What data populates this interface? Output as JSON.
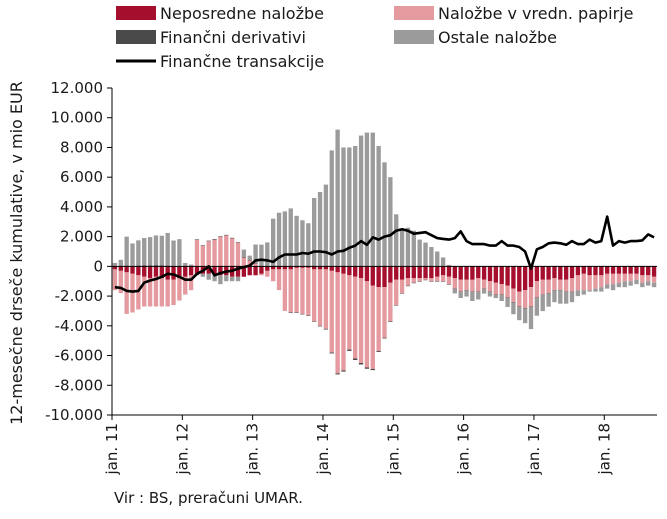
{
  "chart_data": {
    "type": "bar",
    "stacked": true,
    "ylabel": "12-mesečne drseče kumulative, v mio EUR",
    "ylim": [
      -10000,
      12000
    ],
    "yticks": [
      12000,
      10000,
      8000,
      6000,
      4000,
      2000,
      0,
      -2000,
      -4000,
      -6000,
      -8000,
      -10000
    ],
    "ytick_labels": [
      "12.000",
      "10.000",
      "8.000",
      "6.000",
      "4.000",
      "2.000",
      "0",
      "-2.000",
      "-4.000",
      "-6.000",
      "-8.000",
      "-10.000"
    ],
    "xtick_labels": [
      "jan. 11",
      "jan. 12",
      "jan. 13",
      "jan. 14",
      "jan. 15",
      "jan. 16",
      "jan. 17",
      "jan. 18"
    ],
    "xtick_indices": [
      0,
      12,
      24,
      36,
      48,
      60,
      72,
      84
    ],
    "months": 93,
    "grid": false,
    "legend": "top",
    "series": [
      {
        "name": "Neposredne naložbe",
        "color": "#a50f2d",
        "values": [
          -200,
          -300,
          -400,
          -500,
          -600,
          -700,
          -800,
          -700,
          -800,
          -900,
          -900,
          -800,
          -700,
          -600,
          -500,
          -500,
          -500,
          -500,
          -600,
          -600,
          -700,
          -700,
          -700,
          -600,
          -600,
          -500,
          -300,
          -200,
          -200,
          -200,
          -200,
          -100,
          -100,
          -100,
          -200,
          -200,
          -200,
          -300,
          -400,
          -500,
          -600,
          -700,
          -800,
          -1000,
          -1300,
          -1400,
          -1400,
          -1100,
          -900,
          -900,
          -800,
          -800,
          -800,
          -800,
          -800,
          -700,
          -600,
          -700,
          -800,
          -900,
          -900,
          -900,
          -800,
          -900,
          -1000,
          -1100,
          -1200,
          -1300,
          -1500,
          -1700,
          -1600,
          -1400,
          -1000,
          -900,
          -900,
          -800,
          -900,
          -900,
          -800,
          -600,
          -500,
          -600,
          -600,
          -600,
          -500,
          -500,
          -500,
          -500,
          -500,
          -500,
          -600,
          -600,
          -700
        ]
      },
      {
        "name": "Naložbe v vredn. papirje",
        "color": "#e49a9e",
        "values": [
          -1400,
          -1500,
          -2800,
          -2600,
          -2300,
          -2000,
          -1900,
          -2000,
          -1900,
          -1800,
          -1700,
          -1500,
          -1200,
          -1000,
          1800,
          1400,
          1700,
          1800,
          2000,
          2100,
          1900,
          1600,
          600,
          400,
          200,
          -100,
          -400,
          -800,
          -1400,
          -2800,
          -2900,
          -3000,
          -3100,
          -3200,
          -3500,
          -3800,
          -4000,
          -5500,
          -6800,
          -6500,
          -5000,
          -5500,
          -5700,
          -5800,
          -5600,
          -4300,
          -3400,
          -2600,
          -1700,
          -900,
          -500,
          -300,
          -200,
          -100,
          -200,
          -300,
          -400,
          -500,
          -700,
          -800,
          -700,
          -800,
          -900,
          -600,
          -700,
          -800,
          -700,
          -800,
          -900,
          -1000,
          -1200,
          -1300,
          -1100,
          -1000,
          -900,
          -800,
          -700,
          -800,
          -900,
          -1000,
          -1100,
          -1000,
          -900,
          -800,
          -700,
          -700,
          -600,
          -500,
          -500,
          -400,
          -500,
          -400,
          -400
        ]
      },
      {
        "name": "Finančni derivativi",
        "color": "#4a4a4a",
        "values": [
          30,
          40,
          50,
          40,
          50,
          60,
          70,
          80,
          60,
          50,
          40,
          30,
          30,
          20,
          20,
          20,
          30,
          40,
          30,
          20,
          20,
          30,
          30,
          20,
          20,
          10,
          10,
          10,
          10,
          0,
          -10,
          -10,
          -20,
          -30,
          -30,
          -40,
          -50,
          -60,
          -70,
          -80,
          -90,
          -100,
          -100,
          -90,
          -80,
          -60,
          -50,
          -40,
          -30,
          -20,
          -20,
          -10,
          -10,
          -10,
          -10,
          -20,
          -20,
          -20,
          -20,
          -30,
          -30,
          -30,
          -30,
          -30,
          -30,
          -30,
          -30,
          -30,
          -20,
          -20,
          -20,
          -20,
          -20,
          -10,
          -10,
          -10,
          -10,
          -10,
          -10,
          0,
          0,
          0,
          0,
          0,
          0,
          0,
          0,
          0,
          0,
          0,
          0,
          0,
          0
        ]
      },
      {
        "name": "Ostale naložbe",
        "color": "#9b9b9b",
        "values": [
          200,
          400,
          1950,
          1500,
          1700,
          1850,
          1900,
          2000,
          2000,
          2200,
          1700,
          1800,
          200,
          100,
          -100,
          -200,
          -400,
          -500,
          -600,
          -400,
          -300,
          -300,
          500,
          300,
          1250,
          1450,
          1600,
          3200,
          3600,
          3700,
          3900,
          3400,
          3100,
          2900,
          4600,
          5000,
          5500,
          7800,
          9200,
          8000,
          8000,
          8100,
          8800,
          9000,
          9000,
          8100,
          7000,
          6000,
          3500,
          2500,
          2600,
          2400,
          1800,
          1600,
          1300,
          1000,
          600,
          100,
          -300,
          -400,
          -400,
          -600,
          -500,
          -300,
          -300,
          -200,
          -400,
          -600,
          -800,
          -900,
          -1000,
          -1500,
          -1200,
          -1100,
          -900,
          -800,
          -900,
          -800,
          -700,
          -400,
          -300,
          -100,
          -200,
          -300,
          -300,
          -400,
          -300,
          -400,
          -300,
          -300,
          -300,
          -300,
          -300
        ]
      },
      {
        "name": "Finančne transakcije",
        "color": "#000000",
        "type": "line",
        "values": [
          -1400,
          -1450,
          -1650,
          -1700,
          -1650,
          -1100,
          -950,
          -850,
          -700,
          -500,
          -550,
          -700,
          -900,
          -900,
          -500,
          -300,
          0,
          -600,
          -450,
          -350,
          -300,
          -150,
          -50,
          50,
          400,
          450,
          400,
          300,
          600,
          800,
          800,
          800,
          900,
          850,
          1000,
          1000,
          950,
          800,
          1000,
          1050,
          1250,
          1400,
          1700,
          1450,
          1950,
          1800,
          2000,
          2100,
          2400,
          2500,
          2400,
          2200,
          2250,
          2300,
          2100,
          1900,
          1850,
          1800,
          1900,
          2350,
          1700,
          1500,
          1500,
          1500,
          1400,
          1400,
          1700,
          1400,
          1400,
          1300,
          1000,
          -150,
          1150,
          1300,
          1550,
          1600,
          1550,
          1450,
          1700,
          1500,
          1500,
          1800,
          1600,
          1700,
          3350,
          1400,
          1700,
          1600,
          1700,
          1700,
          1750,
          2150,
          1950
        ]
      }
    ]
  },
  "source_text": "Vir : BS, preračuni UMAR."
}
